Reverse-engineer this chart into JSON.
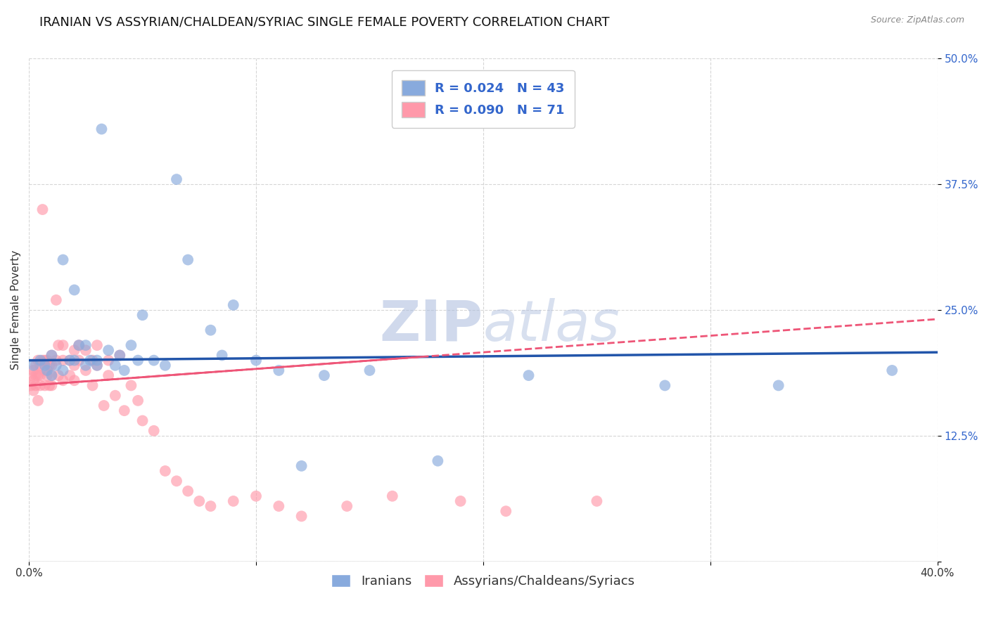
{
  "title": "IRANIAN VS ASSYRIAN/CHALDEAN/SYRIAC SINGLE FEMALE POVERTY CORRELATION CHART",
  "source": "Source: ZipAtlas.com",
  "xlabel_iranians": "Iranians",
  "xlabel_assyrians": "Assyrians/Chaldeans/Syriacs",
  "ylabel": "Single Female Poverty",
  "xlim": [
    0,
    0.4
  ],
  "ylim": [
    0,
    0.5
  ],
  "R_iranian": 0.024,
  "N_iranian": 43,
  "R_assyrian": 0.09,
  "N_assyrian": 71,
  "blue_color": "#88AADD",
  "pink_color": "#FF99AA",
  "blue_line_color": "#2255AA",
  "pink_line_color": "#EE5577",
  "legend_text_color": "#3366CC",
  "iranian_x": [
    0.002,
    0.005,
    0.007,
    0.008,
    0.01,
    0.01,
    0.012,
    0.015,
    0.015,
    0.018,
    0.02,
    0.02,
    0.022,
    0.025,
    0.025,
    0.027,
    0.03,
    0.03,
    0.032,
    0.035,
    0.038,
    0.04,
    0.042,
    0.045,
    0.048,
    0.05,
    0.055,
    0.06,
    0.065,
    0.07,
    0.08,
    0.085,
    0.09,
    0.1,
    0.11,
    0.12,
    0.13,
    0.15,
    0.18,
    0.22,
    0.28,
    0.33,
    0.38
  ],
  "iranian_y": [
    0.195,
    0.2,
    0.195,
    0.19,
    0.205,
    0.185,
    0.195,
    0.3,
    0.19,
    0.2,
    0.27,
    0.2,
    0.215,
    0.195,
    0.215,
    0.2,
    0.2,
    0.195,
    0.43,
    0.21,
    0.195,
    0.205,
    0.19,
    0.215,
    0.2,
    0.245,
    0.2,
    0.195,
    0.38,
    0.3,
    0.23,
    0.205,
    0.255,
    0.2,
    0.19,
    0.095,
    0.185,
    0.19,
    0.1,
    0.185,
    0.175,
    0.175,
    0.19
  ],
  "assyrian_x": [
    0.001,
    0.001,
    0.002,
    0.002,
    0.002,
    0.003,
    0.003,
    0.003,
    0.004,
    0.004,
    0.004,
    0.005,
    0.005,
    0.005,
    0.006,
    0.006,
    0.007,
    0.007,
    0.007,
    0.008,
    0.008,
    0.009,
    0.009,
    0.01,
    0.01,
    0.01,
    0.01,
    0.012,
    0.012,
    0.013,
    0.013,
    0.015,
    0.015,
    0.015,
    0.018,
    0.018,
    0.02,
    0.02,
    0.02,
    0.022,
    0.022,
    0.025,
    0.025,
    0.028,
    0.028,
    0.03,
    0.03,
    0.033,
    0.035,
    0.035,
    0.038,
    0.04,
    0.042,
    0.045,
    0.048,
    0.05,
    0.055,
    0.06,
    0.065,
    0.07,
    0.075,
    0.08,
    0.09,
    0.1,
    0.11,
    0.12,
    0.14,
    0.16,
    0.19,
    0.21,
    0.25
  ],
  "assyrian_y": [
    0.185,
    0.175,
    0.19,
    0.18,
    0.17,
    0.195,
    0.185,
    0.175,
    0.2,
    0.185,
    0.16,
    0.195,
    0.185,
    0.175,
    0.2,
    0.35,
    0.2,
    0.19,
    0.175,
    0.2,
    0.185,
    0.195,
    0.175,
    0.205,
    0.195,
    0.185,
    0.175,
    0.26,
    0.2,
    0.215,
    0.185,
    0.215,
    0.2,
    0.18,
    0.2,
    0.185,
    0.21,
    0.195,
    0.18,
    0.215,
    0.2,
    0.21,
    0.19,
    0.2,
    0.175,
    0.215,
    0.195,
    0.155,
    0.2,
    0.185,
    0.165,
    0.205,
    0.15,
    0.175,
    0.16,
    0.14,
    0.13,
    0.09,
    0.08,
    0.07,
    0.06,
    0.055,
    0.06,
    0.065,
    0.055,
    0.045,
    0.055,
    0.065,
    0.06,
    0.05,
    0.06
  ],
  "background_color": "#FFFFFF",
  "grid_color": "#CCCCCC",
  "title_fontsize": 13,
  "axis_label_fontsize": 11,
  "tick_fontsize": 11,
  "legend_fontsize": 13,
  "dot_size": 130,
  "dot_alpha": 0.65
}
